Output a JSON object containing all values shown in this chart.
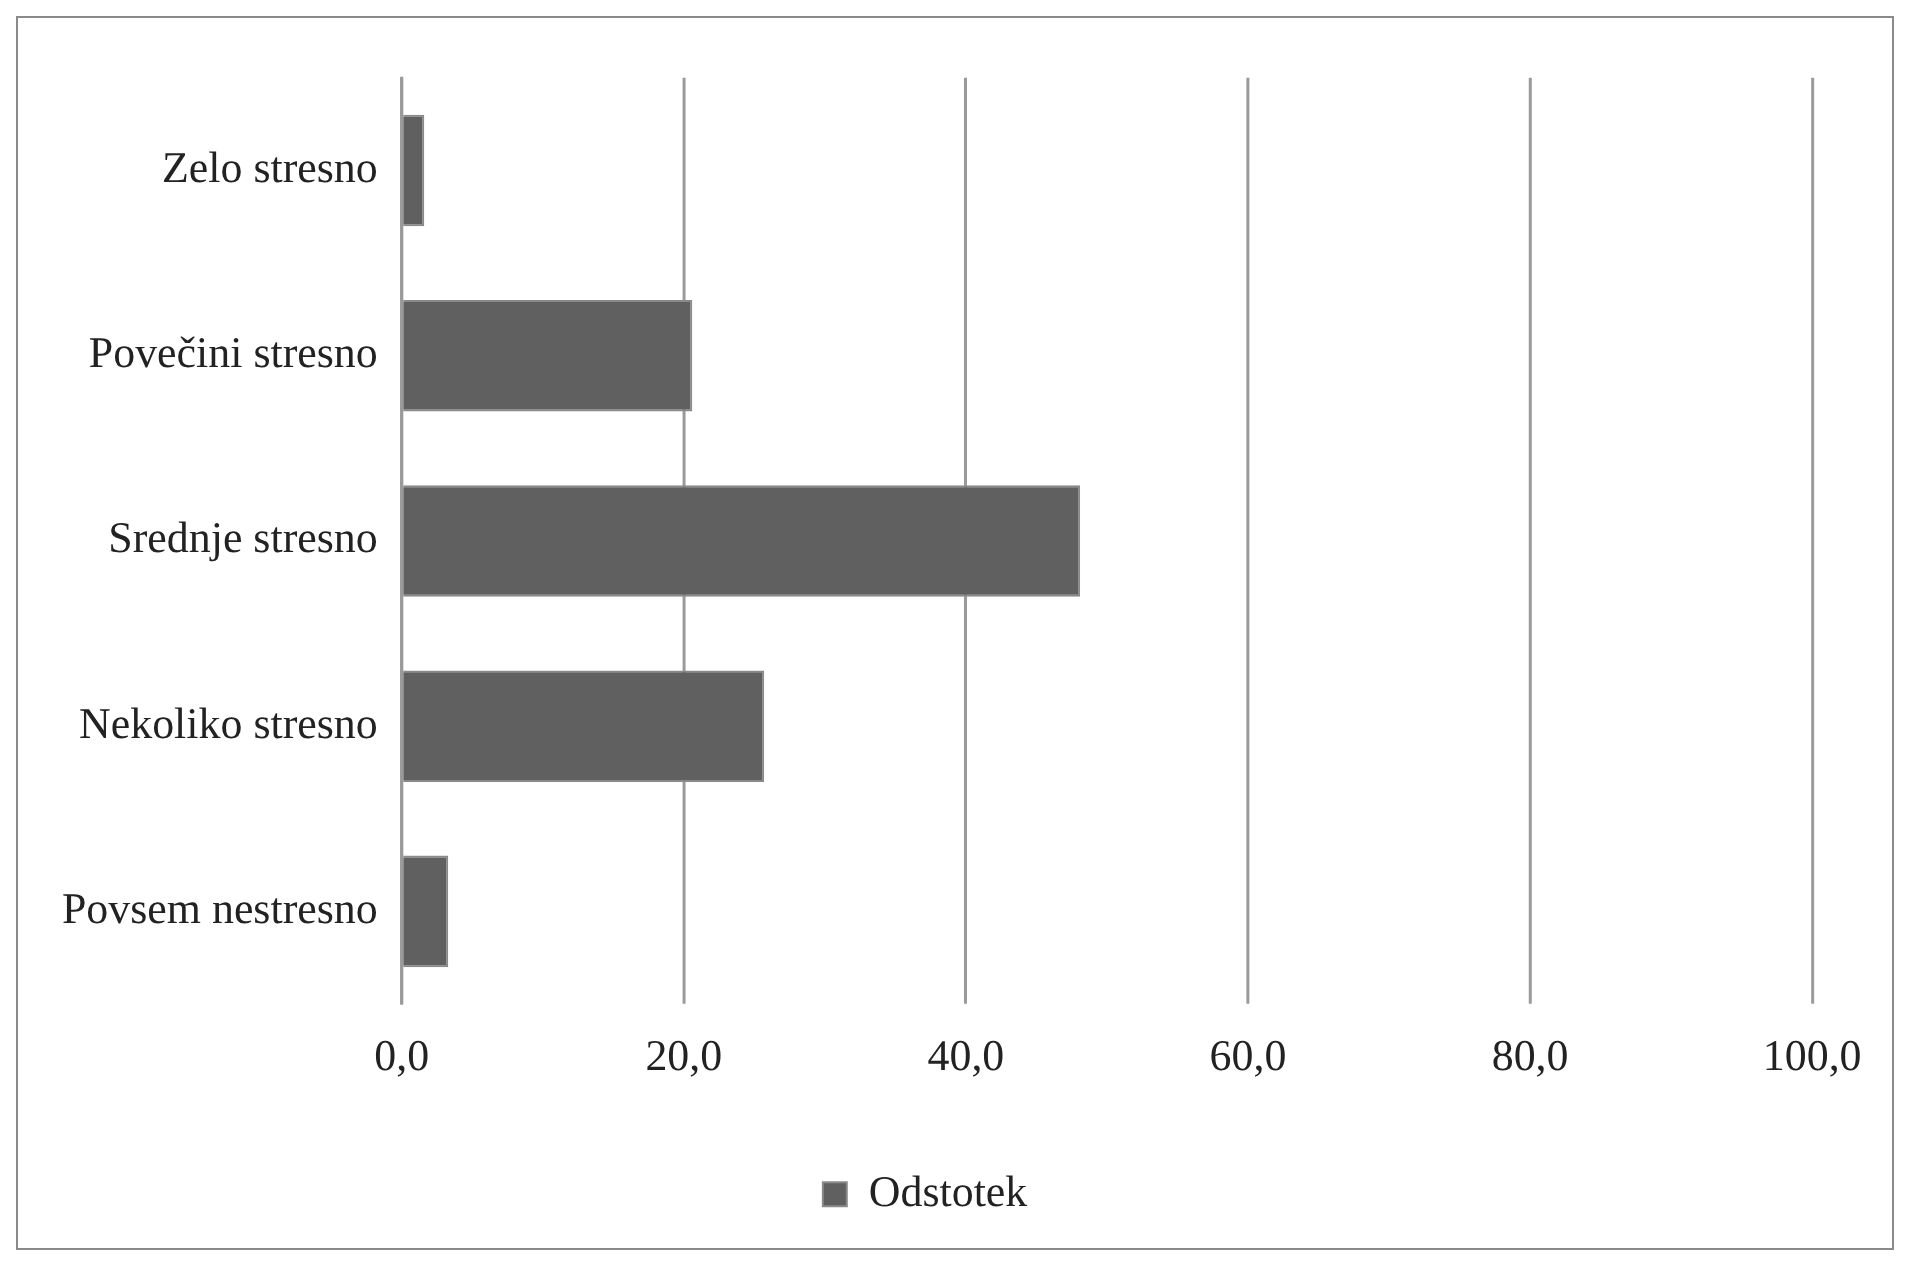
{
  "chart_data": {
    "type": "bar",
    "orientation": "horizontal",
    "categories": [
      "Zelo stresno",
      "Povečini stresno",
      "Srednje stresno",
      "Nekoliko stresno",
      "Povsem nestresno"
    ],
    "series": [
      {
        "name": "Odstotek",
        "color": "#606060",
        "values": [
          1.6,
          20.6,
          48.1,
          25.7,
          3.3
        ]
      }
    ],
    "xlim": [
      0,
      100
    ],
    "xticks": [
      {
        "value": 0,
        "label": "0,0"
      },
      {
        "value": 20,
        "label": "20,0"
      },
      {
        "value": 40,
        "label": "40,0"
      },
      {
        "value": 60,
        "label": "60,0"
      },
      {
        "value": 80,
        "label": "80,0"
      },
      {
        "value": 100,
        "label": "100,0"
      }
    ],
    "grid": "x",
    "legend": "bottom"
  }
}
